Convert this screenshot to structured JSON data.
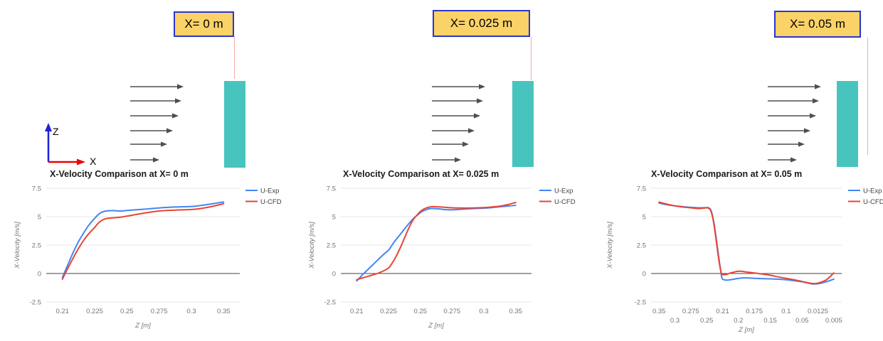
{
  "panels": [
    {
      "label": "X= 0 m"
    },
    {
      "label": "X= 0.025 m"
    },
    {
      "label": "X= 0.05 m"
    }
  ],
  "axes_icon": {
    "vertical_label": "Z",
    "horizontal_label": "X"
  },
  "legend_entries": [
    "U-Exp",
    "U-CFD"
  ],
  "colors": {
    "series_exp": "#4285F4",
    "series_cfd": "#EA4335",
    "obstacle": "#47C4BD",
    "label_box_fill": "#FBD267",
    "label_box_border": "#2B35CF",
    "indicator_line": "#F2ABA8",
    "flow_arrow": "#4F4F4F",
    "axis_z_arrow": "#2020DF",
    "axis_x_arrow": "#EE0000",
    "gridline": "#E4E4E4",
    "zero_line": "#424242",
    "tick_text": "#757575",
    "title_text": "#1A1A1A"
  },
  "chart_data": [
    {
      "type": "line",
      "title": "X-Velocity Comparison at X= 0 m",
      "xlabel": "Z [m]",
      "ylabel": "X-Velocity [m/s]",
      "ylim": [
        -2.5,
        7.5
      ],
      "y_ticks": [
        "7.5",
        "5",
        "2.5",
        "0",
        "-2.5"
      ],
      "x_tick_labels": [
        "0.21",
        "0.225",
        "0.25",
        "0.275",
        "0.3",
        "0.35"
      ],
      "x_ticks_two_rows": false,
      "grid": true,
      "legend_position": "right",
      "series": [
        {
          "name": "U-Exp",
          "color": "#4285F4",
          "points": [
            [
              0.21,
              -0.35
            ],
            [
              0.2125,
              0.75
            ],
            [
              0.215,
              1.85
            ],
            [
              0.2175,
              2.8
            ],
            [
              0.22,
              3.6
            ],
            [
              0.2225,
              4.3
            ],
            [
              0.225,
              4.85
            ],
            [
              0.228,
              5.2
            ],
            [
              0.231,
              5.42
            ],
            [
              0.235,
              5.52
            ],
            [
              0.24,
              5.53
            ],
            [
              0.245,
              5.5
            ],
            [
              0.25,
              5.55
            ],
            [
              0.2625,
              5.65
            ],
            [
              0.275,
              5.77
            ],
            [
              0.2875,
              5.85
            ],
            [
              0.3,
              5.9
            ],
            [
              0.3125,
              5.97
            ],
            [
              0.325,
              6.07
            ],
            [
              0.3375,
              6.18
            ],
            [
              0.35,
              6.3
            ]
          ]
        },
        {
          "name": "U-CFD",
          "color": "#EA4335",
          "points": [
            [
              0.21,
              -0.5
            ],
            [
              0.2125,
              0.45
            ],
            [
              0.215,
              1.35
            ],
            [
              0.2175,
              2.2
            ],
            [
              0.22,
              2.95
            ],
            [
              0.2225,
              3.55
            ],
            [
              0.225,
              4.05
            ],
            [
              0.228,
              4.45
            ],
            [
              0.231,
              4.7
            ],
            [
              0.235,
              4.85
            ],
            [
              0.24,
              4.9
            ],
            [
              0.245,
              4.95
            ],
            [
              0.25,
              5.05
            ],
            [
              0.2625,
              5.3
            ],
            [
              0.275,
              5.5
            ],
            [
              0.2875,
              5.58
            ],
            [
              0.3,
              5.63
            ],
            [
              0.3125,
              5.7
            ],
            [
              0.325,
              5.82
            ],
            [
              0.3375,
              5.97
            ],
            [
              0.35,
              6.15
            ]
          ]
        }
      ]
    },
    {
      "type": "line",
      "title": "X-Velocity Comparison at X= 0.025 m",
      "xlabel": "Z [m]",
      "ylabel": "X-Velocity [m/s]",
      "ylim": [
        -2.5,
        7.5
      ],
      "y_ticks": [
        "7.5",
        "5",
        "2.5",
        "0",
        "-2.5"
      ],
      "x_tick_labels": [
        "0.21",
        "0.225",
        "0.25",
        "0.275",
        "0.3",
        "0.35"
      ],
      "x_ticks_two_rows": false,
      "grid": true,
      "legend_position": "right",
      "series": [
        {
          "name": "U-Exp",
          "color": "#4285F4",
          "points": [
            [
              0.21,
              -0.65
            ],
            [
              0.2125,
              -0.15
            ],
            [
              0.215,
              0.3
            ],
            [
              0.2175,
              0.75
            ],
            [
              0.22,
              1.2
            ],
            [
              0.2225,
              1.65
            ],
            [
              0.225,
              2.05
            ],
            [
              0.2275,
              2.45
            ],
            [
              0.23,
              2.85
            ],
            [
              0.2325,
              3.2
            ],
            [
              0.235,
              3.55
            ],
            [
              0.2375,
              3.9
            ],
            [
              0.24,
              4.25
            ],
            [
              0.2425,
              4.58
            ],
            [
              0.245,
              4.88
            ],
            [
              0.2475,
              5.12
            ],
            [
              0.25,
              5.35
            ],
            [
              0.2525,
              5.52
            ],
            [
              0.255,
              5.63
            ],
            [
              0.2575,
              5.7
            ],
            [
              0.26,
              5.72
            ],
            [
              0.265,
              5.68
            ],
            [
              0.27,
              5.62
            ],
            [
              0.275,
              5.6
            ],
            [
              0.2825,
              5.65
            ],
            [
              0.29,
              5.7
            ],
            [
              0.3,
              5.75
            ],
            [
              0.3125,
              5.8
            ],
            [
              0.325,
              5.87
            ],
            [
              0.3375,
              5.93
            ],
            [
              0.35,
              6.0
            ]
          ]
        },
        {
          "name": "U-CFD",
          "color": "#EA4335",
          "points": [
            [
              0.21,
              -0.55
            ],
            [
              0.2125,
              -0.4
            ],
            [
              0.215,
              -0.27
            ],
            [
              0.2175,
              -0.13
            ],
            [
              0.22,
              0.02
            ],
            [
              0.2225,
              0.22
            ],
            [
              0.225,
              0.48
            ],
            [
              0.2275,
              0.85
            ],
            [
              0.23,
              1.3
            ],
            [
              0.2325,
              1.85
            ],
            [
              0.235,
              2.45
            ],
            [
              0.2375,
              3.1
            ],
            [
              0.24,
              3.75
            ],
            [
              0.2425,
              4.35
            ],
            [
              0.245,
              4.82
            ],
            [
              0.2475,
              5.15
            ],
            [
              0.25,
              5.45
            ],
            [
              0.2525,
              5.65
            ],
            [
              0.255,
              5.78
            ],
            [
              0.2575,
              5.85
            ],
            [
              0.26,
              5.88
            ],
            [
              0.265,
              5.86
            ],
            [
              0.27,
              5.82
            ],
            [
              0.275,
              5.78
            ],
            [
              0.2825,
              5.76
            ],
            [
              0.29,
              5.77
            ],
            [
              0.3,
              5.8
            ],
            [
              0.3125,
              5.85
            ],
            [
              0.325,
              5.92
            ],
            [
              0.3375,
              6.06
            ],
            [
              0.35,
              6.25
            ]
          ]
        }
      ]
    },
    {
      "type": "line",
      "title": "X-Velocity Comparison at X= 0.05 m",
      "xlabel": "Z [m]",
      "ylabel": "X-Velocity [m/s]",
      "ylim": [
        -2.5,
        7.5
      ],
      "y_ticks": [
        "7.5",
        "5",
        "2.5",
        "0",
        "-2.5"
      ],
      "x_tick_labels": [
        "0.35",
        "0.3",
        "0.275",
        "0.25",
        "0.21",
        "0.2",
        "0.175",
        "0.15",
        "0.1",
        "0.05",
        "0.0125",
        "0.005"
      ],
      "x_ticks_two_rows": true,
      "x_axis_reversed": true,
      "grid": true,
      "legend_position": "right",
      "series": [
        {
          "name": "U-Exp",
          "color": "#4285F4",
          "points": [
            [
              0.35,
              6.2
            ],
            [
              0.325,
              6.05
            ],
            [
              0.3,
              5.95
            ],
            [
              0.2875,
              5.88
            ],
            [
              0.275,
              5.82
            ],
            [
              0.2625,
              5.78
            ],
            [
              0.25,
              5.8
            ],
            [
              0.245,
              5.78
            ],
            [
              0.24,
              5.62
            ],
            [
              0.235,
              5.05
            ],
            [
              0.23,
              4.1
            ],
            [
              0.225,
              2.85
            ],
            [
              0.22,
              1.55
            ],
            [
              0.215,
              0.35
            ],
            [
              0.2125,
              -0.25
            ],
            [
              0.21,
              -0.5
            ],
            [
              0.2075,
              -0.58
            ],
            [
              0.205,
              -0.55
            ],
            [
              0.2,
              -0.43
            ],
            [
              0.19,
              -0.38
            ],
            [
              0.175,
              -0.42
            ],
            [
              0.1625,
              -0.45
            ],
            [
              0.15,
              -0.47
            ],
            [
              0.125,
              -0.5
            ],
            [
              0.1,
              -0.55
            ],
            [
              0.075,
              -0.63
            ],
            [
              0.05,
              -0.73
            ],
            [
              0.0375,
              -0.83
            ],
            [
              0.025,
              -0.92
            ],
            [
              0.0125,
              -0.9
            ],
            [
              0.0085,
              -0.72
            ],
            [
              0.005,
              -0.5
            ]
          ]
        },
        {
          "name": "U-CFD",
          "color": "#EA4335",
          "points": [
            [
              0.35,
              6.28
            ],
            [
              0.325,
              6.1
            ],
            [
              0.3,
              5.95
            ],
            [
              0.2875,
              5.85
            ],
            [
              0.275,
              5.78
            ],
            [
              0.2625,
              5.72
            ],
            [
              0.25,
              5.78
            ],
            [
              0.245,
              5.74
            ],
            [
              0.24,
              5.55
            ],
            [
              0.235,
              4.95
            ],
            [
              0.23,
              3.95
            ],
            [
              0.225,
              2.65
            ],
            [
              0.22,
              1.35
            ],
            [
              0.215,
              0.3
            ],
            [
              0.2125,
              -0.03
            ],
            [
              0.21,
              -0.1
            ],
            [
              0.2075,
              -0.08
            ],
            [
              0.205,
              0.05
            ],
            [
              0.2,
              0.2
            ],
            [
              0.19,
              0.15
            ],
            [
              0.175,
              0.05
            ],
            [
              0.1625,
              -0.05
            ],
            [
              0.15,
              -0.15
            ],
            [
              0.125,
              -0.3
            ],
            [
              0.1,
              -0.42
            ],
            [
              0.075,
              -0.55
            ],
            [
              0.05,
              -0.7
            ],
            [
              0.0375,
              -0.8
            ],
            [
              0.025,
              -0.88
            ],
            [
              0.0125,
              -0.85
            ],
            [
              0.0085,
              -0.55
            ],
            [
              0.005,
              0.05
            ]
          ]
        }
      ]
    }
  ]
}
